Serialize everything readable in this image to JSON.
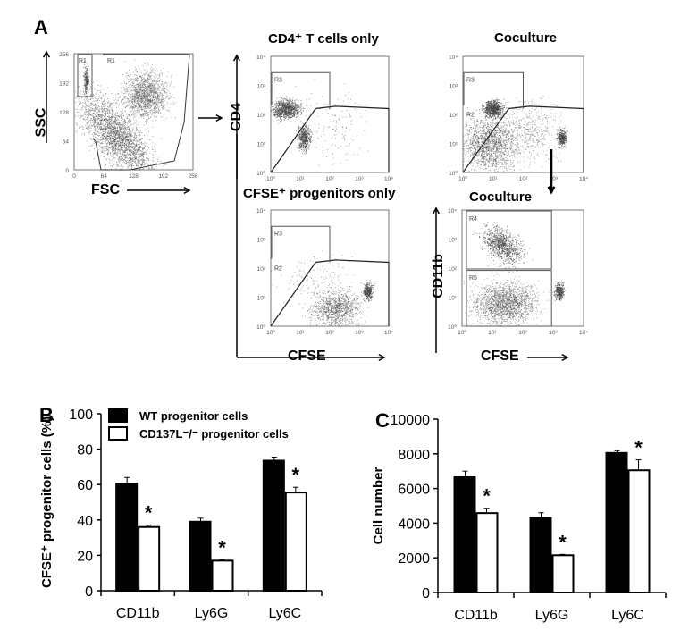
{
  "panel_a": {
    "letter": "A",
    "scatter": {
      "xlabel": "FSC",
      "ylabel": "SSC",
      "ticks": [
        "0",
        "64",
        "128",
        "192",
        "256"
      ],
      "gates": [
        "R1",
        "R1"
      ]
    },
    "cd4_axis_label": "CD4",
    "cfse_axis_label": "CFSE",
    "cd11b_axis_label": "CD11b",
    "cfse_axis_label_right": "CFSE",
    "log_ticks": [
      "10⁰",
      "10¹",
      "10²",
      "10³",
      "10⁴"
    ],
    "plots": [
      {
        "title": "CD4⁺ T cells only",
        "gates": [
          "R3",
          "R2"
        ]
      },
      {
        "title": "Coculture",
        "gates": [
          "R3",
          "R2"
        ]
      },
      {
        "title": "CFSE⁺ progenitors only",
        "gates": [
          "R3",
          "R2"
        ]
      },
      {
        "title": "Coculture",
        "gates": [
          "R4",
          "R5"
        ]
      }
    ]
  },
  "chart_data": [
    {
      "panel": "B",
      "type": "bar",
      "categories": [
        "CD11b",
        "Ly6G",
        "Ly6C"
      ],
      "ylabel": "CFSE⁺ progenitor cells (%)",
      "ylim": [
        0,
        100
      ],
      "yticks": [
        "0",
        "20",
        "40",
        "60",
        "80",
        "100"
      ],
      "legend_position": "top-left",
      "series": [
        {
          "name": "WT progenitor cells",
          "color": "#000000",
          "values": [
            60.5,
            39,
            73.5
          ],
          "errors": [
            3.5,
            2,
            2
          ]
        },
        {
          "name": "CD137L⁻/⁻ progenitor cells",
          "color": "#ffffff",
          "values": [
            36,
            17,
            55.5
          ],
          "errors": [
            1,
            0.5,
            3
          ]
        }
      ],
      "annotations": [
        "*",
        "*",
        "*"
      ]
    },
    {
      "panel": "C",
      "type": "bar",
      "categories": [
        "CD11b",
        "Ly6G",
        "Ly6C"
      ],
      "ylabel": "Cell number",
      "ylim": [
        0,
        10000
      ],
      "yticks": [
        "0",
        "2000",
        "4000",
        "6000",
        "8000",
        "10000"
      ],
      "series": [
        {
          "color": "#000000",
          "values": [
            6650,
            4300,
            8050
          ],
          "errors": [
            350,
            300,
            130
          ]
        },
        {
          "color": "#ffffff",
          "values": [
            4580,
            2150,
            7050
          ],
          "errors": [
            280,
            50,
            600
          ]
        }
      ],
      "annotations": [
        "*",
        "*",
        "*"
      ]
    }
  ]
}
